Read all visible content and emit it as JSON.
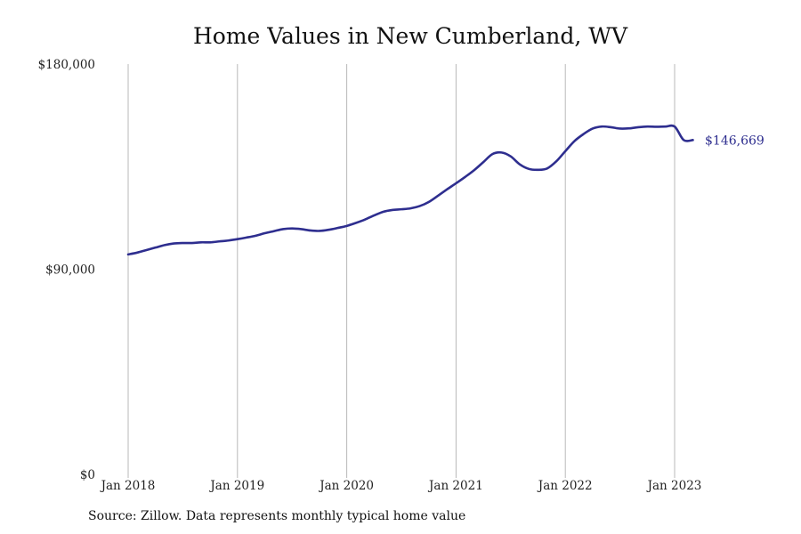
{
  "chart_data": {
    "type": "line",
    "title": "Home Values in New Cumberland, WV",
    "xlabel": "",
    "ylabel": "",
    "ylim": [
      0,
      180000
    ],
    "y_ticks": [
      {
        "value": 0,
        "label": "$0"
      },
      {
        "value": 90000,
        "label": "$90,000"
      },
      {
        "value": 180000,
        "label": "$180,000"
      }
    ],
    "x_ticks": [
      {
        "value": "2018-01",
        "label": "Jan 2018"
      },
      {
        "value": "2019-01",
        "label": "Jan 2019"
      },
      {
        "value": "2020-01",
        "label": "Jan 2020"
      },
      {
        "value": "2021-01",
        "label": "Jan 2021"
      },
      {
        "value": "2022-01",
        "label": "Jan 2022"
      },
      {
        "value": "2023-01",
        "label": "Jan 2023"
      }
    ],
    "grid": "vertical",
    "series": [
      {
        "color": "#2e2e8f",
        "end_label": "$146,669",
        "x": [
          "2018-01",
          "2018-02",
          "2018-03",
          "2018-04",
          "2018-05",
          "2018-06",
          "2018-07",
          "2018-08",
          "2018-09",
          "2018-10",
          "2018-11",
          "2018-12",
          "2019-01",
          "2019-02",
          "2019-03",
          "2019-04",
          "2019-05",
          "2019-06",
          "2019-07",
          "2019-08",
          "2019-09",
          "2019-10",
          "2019-11",
          "2019-12",
          "2020-01",
          "2020-02",
          "2020-03",
          "2020-04",
          "2020-05",
          "2020-06",
          "2020-07",
          "2020-08",
          "2020-09",
          "2020-10",
          "2020-11",
          "2020-12",
          "2021-01",
          "2021-02",
          "2021-03",
          "2021-04",
          "2021-05",
          "2021-06",
          "2021-07",
          "2021-08",
          "2021-09",
          "2021-10",
          "2021-11",
          "2021-12",
          "2022-01",
          "2022-02",
          "2022-03",
          "2022-04",
          "2022-05",
          "2022-06",
          "2022-07",
          "2022-08",
          "2022-09",
          "2022-10",
          "2022-11",
          "2022-12",
          "2023-01",
          "2023-02",
          "2023-03"
        ],
        "values": [
          96500,
          97300,
          98400,
          99500,
          100600,
          101300,
          101500,
          101500,
          101800,
          101800,
          102200,
          102600,
          103200,
          103900,
          104700,
          105800,
          106700,
          107600,
          107900,
          107600,
          107000,
          106800,
          107300,
          108100,
          109000,
          110300,
          111800,
          113600,
          115200,
          116000,
          116300,
          116700,
          117700,
          119500,
          122200,
          125000,
          127700,
          130500,
          133500,
          137000,
          140500,
          141200,
          139500,
          136000,
          134000,
          133600,
          134200,
          137300,
          141800,
          146200,
          149300,
          151700,
          152600,
          152300,
          151700,
          151800,
          152300,
          152600,
          152500,
          152600,
          152600,
          146669,
          146669
        ]
      }
    ]
  },
  "source_note": "Source: Zillow. Data represents monthly typical home value"
}
